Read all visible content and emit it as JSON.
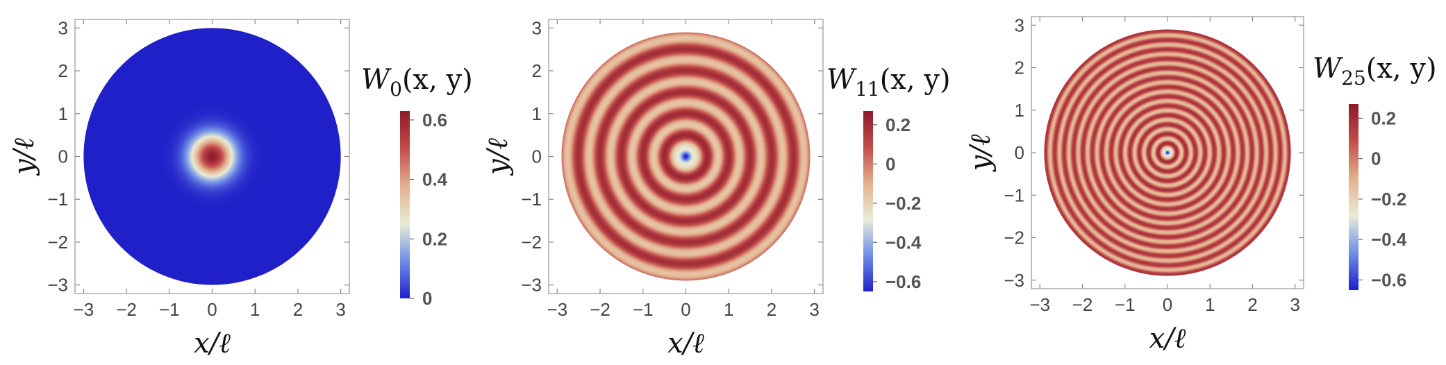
{
  "chart_data": [
    {
      "type": "heatmap",
      "function": "W_0",
      "colorbar_title_main": "W",
      "colorbar_title_sub": "0",
      "colorbar_title_args": "(x, y)",
      "xlabel": "x/ℓ",
      "ylabel": "y/ℓ",
      "xlim": [
        -3.2,
        3.2
      ],
      "ylim": [
        -3.2,
        3.2
      ],
      "xticks": [
        "−3",
        "−2",
        "−1",
        "0",
        "1",
        "2",
        "3"
      ],
      "yticks": [
        "3",
        "2",
        "1",
        "0",
        "−1",
        "−2",
        "−3"
      ],
      "domain_radius": 3,
      "pattern": {
        "kind": "gaussian",
        "peak": 0.62,
        "width": 0.35,
        "background": 0
      },
      "colorbar": {
        "min": 0,
        "max": 0.63,
        "ticks": [
          0.6,
          0.4,
          0.2,
          0
        ],
        "tick_labels": [
          "0.6",
          "0.4",
          "0.2",
          "0"
        ]
      }
    },
    {
      "type": "heatmap",
      "function": "W_11",
      "colorbar_title_main": "W",
      "colorbar_title_sub": "11",
      "colorbar_title_args": "(x, y)",
      "xlabel": "x/ℓ",
      "ylabel": "y/ℓ",
      "xlim": [
        -3.2,
        3.2
      ],
      "ylim": [
        -3.2,
        3.2
      ],
      "xticks": [
        "−3",
        "−2",
        "−1",
        "0",
        "1",
        "2",
        "3"
      ],
      "yticks": [
        "3",
        "2",
        "1",
        "0",
        "−1",
        "−2",
        "−3"
      ],
      "domain_radius": 2.9,
      "pattern": {
        "kind": "rings",
        "n": 11,
        "center_value": -0.65,
        "amplitude": 0.28,
        "baseline": 0.02
      },
      "colorbar": {
        "min": -0.65,
        "max": 0.27,
        "ticks": [
          0.2,
          0,
          -0.2,
          -0.4,
          -0.6
        ],
        "tick_labels": [
          "0.2",
          "0",
          "−0.2",
          "−0.4",
          "−0.6"
        ]
      }
    },
    {
      "type": "heatmap",
      "function": "W_25",
      "colorbar_title_main": "W",
      "colorbar_title_sub": "25",
      "colorbar_title_args": "(x, y)",
      "xlabel": "x/ℓ",
      "ylabel": "y/ℓ",
      "xlim": [
        -3.2,
        3.2
      ],
      "ylim": [
        -3.2,
        3.2
      ],
      "xticks": [
        "−3",
        "−2",
        "−1",
        "0",
        "1",
        "2",
        "3"
      ],
      "yticks": [
        "3",
        "2",
        "1",
        "0",
        "−1",
        "−2",
        "−3"
      ],
      "domain_radius": 2.9,
      "pattern": {
        "kind": "rings",
        "n": 25,
        "center_value": -0.65,
        "amplitude": 0.24,
        "baseline": 0.02
      },
      "colorbar": {
        "min": -0.65,
        "max": 0.27,
        "ticks": [
          0.2,
          0,
          -0.2,
          -0.4,
          -0.6
        ],
        "tick_labels": [
          "0.2",
          "0",
          "−0.2",
          "−0.4",
          "−0.6"
        ]
      }
    }
  ],
  "colors": {
    "colormap": [
      "#2020c8",
      "#6f8ee8",
      "#e9ecd6",
      "#e3b08e",
      "#c24c4c",
      "#8c1a2a"
    ],
    "frame": "#aaaaaa"
  }
}
